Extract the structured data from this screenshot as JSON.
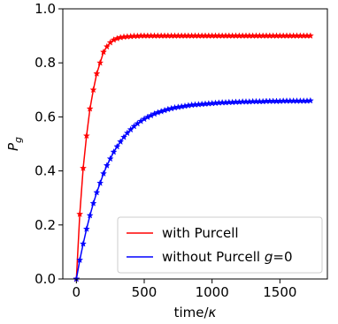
{
  "chart_data": {
    "type": "line",
    "title": "",
    "xlabel": "time/κ",
    "ylabel_main": "P",
    "ylabel_sub": "g",
    "xlim": [
      -100,
      1850
    ],
    "ylim": [
      0,
      1.0
    ],
    "xticks": [
      0,
      500,
      1000,
      1500
    ],
    "yticks": [
      0.0,
      0.2,
      0.4,
      0.6,
      0.8,
      1.0
    ],
    "ytick_labels": [
      "0.0",
      "0.2",
      "0.4",
      "0.6",
      "0.8",
      "1.0"
    ],
    "grid": false,
    "legend_position": "lower-right",
    "series": [
      {
        "name": "with Purcell",
        "color": "#ff0000",
        "marker": "star",
        "x": [
          0,
          25,
          50,
          75,
          100,
          125,
          150,
          175,
          200,
          225,
          250,
          275,
          300,
          325,
          350,
          375,
          400,
          425,
          450,
          475,
          500,
          525,
          550,
          575,
          600,
          625,
          650,
          675,
          700,
          725,
          750,
          775,
          800,
          825,
          850,
          875,
          900,
          925,
          950,
          975,
          1000,
          1025,
          1050,
          1075,
          1100,
          1125,
          1150,
          1175,
          1200,
          1225,
          1250,
          1275,
          1300,
          1325,
          1350,
          1375,
          1400,
          1425,
          1450,
          1475,
          1500,
          1525,
          1550,
          1575,
          1600,
          1625,
          1650,
          1675,
          1700,
          1725
        ],
        "y": [
          0.0,
          0.24,
          0.41,
          0.53,
          0.63,
          0.7,
          0.76,
          0.8,
          0.84,
          0.86,
          0.875,
          0.885,
          0.89,
          0.894,
          0.896,
          0.897,
          0.898,
          0.899,
          0.899,
          0.9,
          0.9,
          0.9,
          0.9,
          0.9,
          0.9,
          0.9,
          0.9,
          0.9,
          0.9,
          0.9,
          0.9,
          0.9,
          0.9,
          0.9,
          0.9,
          0.9,
          0.9,
          0.9,
          0.9,
          0.9,
          0.9,
          0.9,
          0.9,
          0.9,
          0.9,
          0.9,
          0.9,
          0.9,
          0.9,
          0.9,
          0.9,
          0.9,
          0.9,
          0.9,
          0.9,
          0.9,
          0.9,
          0.9,
          0.9,
          0.9,
          0.9,
          0.9,
          0.9,
          0.9,
          0.9,
          0.9,
          0.9,
          0.9,
          0.9,
          0.9
        ]
      },
      {
        "name": "without Purcell g=0",
        "color": "#0000ff",
        "marker": "star",
        "x": [
          0,
          25,
          50,
          75,
          100,
          125,
          150,
          175,
          200,
          225,
          250,
          275,
          300,
          325,
          350,
          375,
          400,
          425,
          450,
          475,
          500,
          525,
          550,
          575,
          600,
          625,
          650,
          675,
          700,
          725,
          750,
          775,
          800,
          825,
          850,
          875,
          900,
          925,
          950,
          975,
          1000,
          1025,
          1050,
          1075,
          1100,
          1125,
          1150,
          1175,
          1200,
          1225,
          1250,
          1275,
          1300,
          1325,
          1350,
          1375,
          1400,
          1425,
          1450,
          1475,
          1500,
          1525,
          1550,
          1575,
          1600,
          1625,
          1650,
          1675,
          1700,
          1725
        ],
        "y": [
          0.0,
          0.07,
          0.13,
          0.185,
          0.235,
          0.28,
          0.32,
          0.355,
          0.39,
          0.42,
          0.445,
          0.47,
          0.49,
          0.508,
          0.525,
          0.54,
          0.553,
          0.565,
          0.575,
          0.584,
          0.592,
          0.599,
          0.605,
          0.611,
          0.616,
          0.62,
          0.624,
          0.628,
          0.631,
          0.634,
          0.636,
          0.638,
          0.64,
          0.642,
          0.644,
          0.645,
          0.646,
          0.647,
          0.648,
          0.649,
          0.65,
          0.651,
          0.652,
          0.653,
          0.653,
          0.654,
          0.654,
          0.655,
          0.655,
          0.656,
          0.656,
          0.656,
          0.657,
          0.657,
          0.657,
          0.657,
          0.658,
          0.658,
          0.658,
          0.658,
          0.658,
          0.659,
          0.659,
          0.659,
          0.659,
          0.659,
          0.659,
          0.659,
          0.659,
          0.66
        ]
      }
    ],
    "legend": {
      "entries": [
        {
          "text": "with Purcell",
          "color": "#ff0000",
          "parts": [
            {
              "t": "with Purcell",
              "italic": false
            }
          ]
        },
        {
          "text": "without Purcell g=0",
          "color": "#0000ff",
          "parts": [
            {
              "t": "without Purcell ",
              "italic": false
            },
            {
              "t": "g",
              "italic": true
            },
            {
              "t": "=0",
              "italic": false
            }
          ]
        }
      ]
    }
  }
}
